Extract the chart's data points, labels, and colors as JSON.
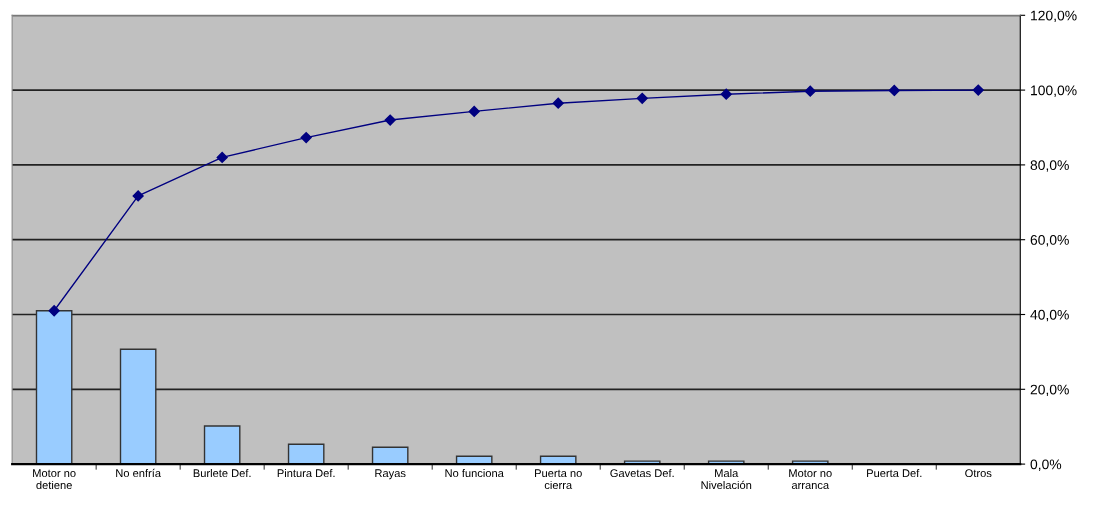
{
  "chart_data": {
    "type": "bar",
    "categories": [
      "Motor no\ndetiene",
      "No enfría",
      "Burlete Def.",
      "Pintura Def.",
      "Rayas",
      "No funciona",
      "Puerta no\ncierra",
      "Gavetas Def.",
      "Mala\nNivelación",
      "Motor no\narranca",
      "Puerta Def.",
      "Otros"
    ],
    "series": [
      {
        "color": "#99ccff",
        "values": [
          41.0,
          30.7,
          10.2,
          5.3,
          4.5,
          2.1,
          2.1,
          0.8,
          0.8,
          0.8,
          0,
          0
        ]
      },
      {
        "type": "line",
        "color": "#000080",
        "marker": "diamond",
        "values": [
          41.0,
          71.7,
          82.0,
          87.3,
          92.0,
          94.3,
          96.5,
          97.8,
          98.9,
          99.7,
          99.9,
          100.0
        ]
      }
    ],
    "ylim": [
      0,
      120
    ],
    "yticks": [
      {
        "value": 0,
        "label": "0,0%"
      },
      {
        "value": 20,
        "label": "20,0%"
      },
      {
        "value": 40,
        "label": "40,0%"
      },
      {
        "value": 60,
        "label": "60,0%"
      },
      {
        "value": 80,
        "label": "80,0%"
      },
      {
        "value": 100,
        "label": "100,0%"
      },
      {
        "value": 120,
        "label": "120,0%"
      }
    ],
    "grid": "y"
  }
}
